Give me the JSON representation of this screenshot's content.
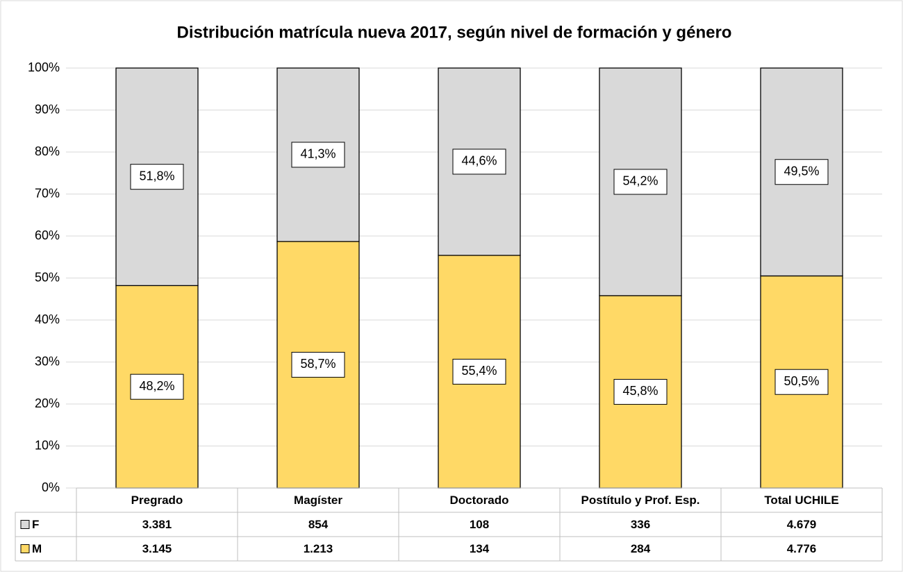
{
  "chart_data": {
    "type": "stacked_bar",
    "title": "Distribución matrícula nueva 2017, según nivel de formación y género",
    "categories": [
      "Pregrado",
      "Magíster",
      "Doctorado",
      "Postítulo y Prof. Esp.",
      "Total UCHILE"
    ],
    "series": [
      {
        "name": "F",
        "color": "#d9d9d9",
        "values": [
          51.8,
          41.3,
          44.6,
          54.2,
          49.5
        ],
        "value_labels": [
          "51,8%",
          "41,3%",
          "44,6%",
          "54,2%",
          "49,5%"
        ],
        "counts": [
          3381,
          854,
          108,
          336,
          4679
        ],
        "count_labels": [
          "3.381",
          "854",
          "108",
          "336",
          "4.679"
        ]
      },
      {
        "name": "M",
        "color": "#ffd966",
        "values": [
          48.2,
          58.7,
          55.4,
          45.8,
          50.5
        ],
        "value_labels": [
          "48,2%",
          "58,7%",
          "55,4%",
          "45,8%",
          "50,5%"
        ],
        "counts": [
          3145,
          1213,
          134,
          284,
          4776
        ],
        "count_labels": [
          "3.145",
          "1.213",
          "134",
          "284",
          "4.776"
        ]
      }
    ],
    "ylim": [
      0,
      100
    ],
    "yticks": [
      {
        "value": 0,
        "label": "0%"
      },
      {
        "value": 10,
        "label": "10%"
      },
      {
        "value": 20,
        "label": "20%"
      },
      {
        "value": 30,
        "label": "30%"
      },
      {
        "value": 40,
        "label": "40%"
      },
      {
        "value": 50,
        "label": "50%"
      },
      {
        "value": 60,
        "label": "60%"
      },
      {
        "value": 70,
        "label": "70%"
      },
      {
        "value": 80,
        "label": "80%"
      },
      {
        "value": 90,
        "label": "90%"
      },
      {
        "value": 100,
        "label": "100%"
      }
    ],
    "grid": true
  }
}
